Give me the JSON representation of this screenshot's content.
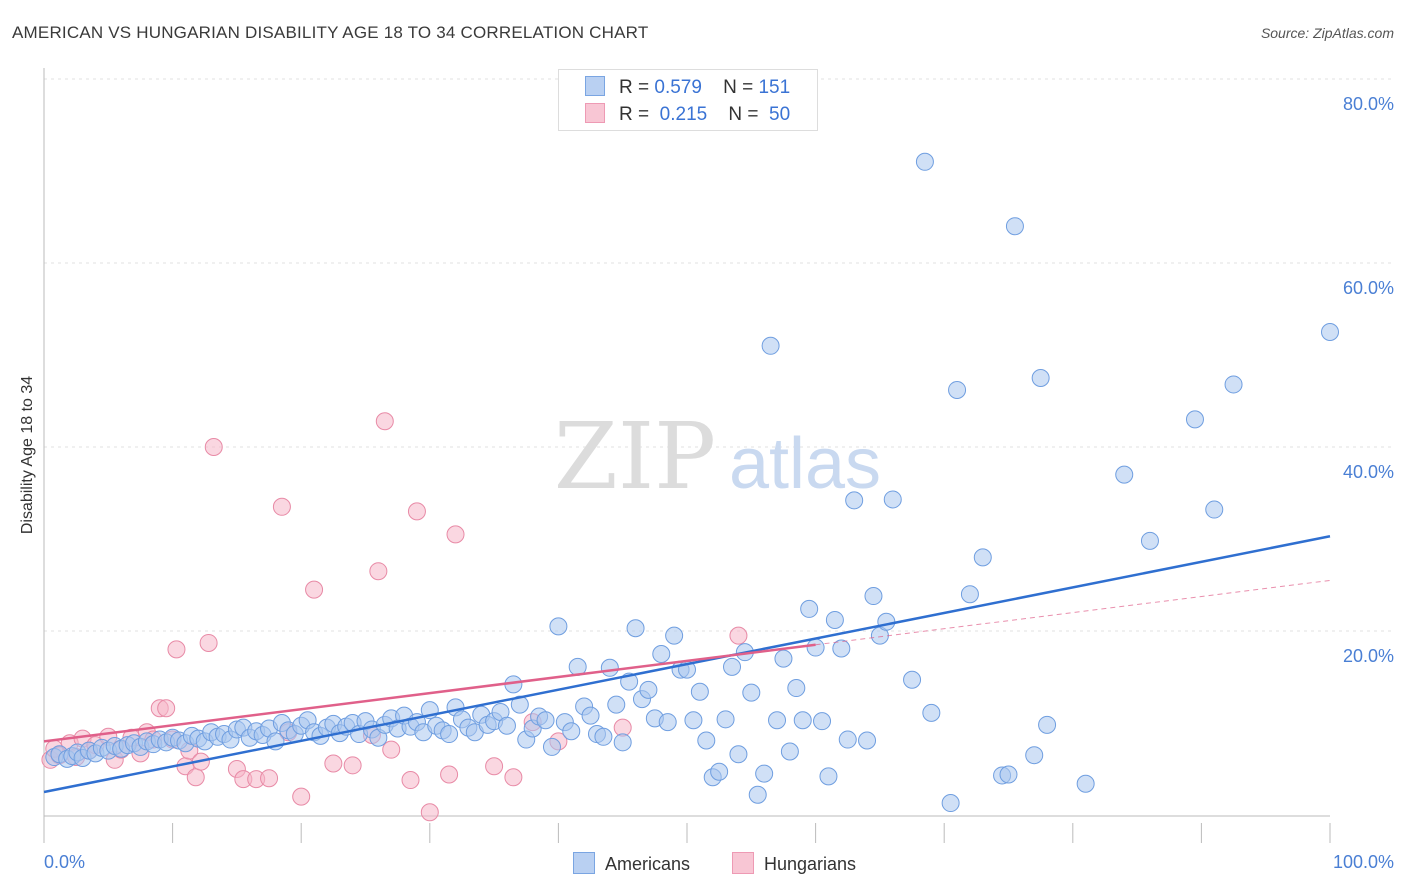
{
  "title": "AMERICAN VS HUNGARIAN DISABILITY AGE 18 TO 34 CORRELATION CHART",
  "source": "Source: ZipAtlas.com",
  "watermark": {
    "zip": "ZIP",
    "atlas": "atlas"
  },
  "legend": {
    "americans": {
      "r_label": "R =",
      "r": "0.579",
      "n_label": "N =",
      "n": "151"
    },
    "hungarians": {
      "r_label": "R =",
      "r": "0.215",
      "n_label": "N =",
      "n": "50"
    }
  },
  "bottom_legend": {
    "americans": "Americans",
    "hungarians": "Hungarians"
  },
  "colors": {
    "american_fill": "#a9c6ee",
    "american_stroke": "#6f9ee0",
    "american_line": "#2f6fd0",
    "hungarian_fill": "#f5b7c8",
    "hungarian_stroke": "#e88aa6",
    "hungarian_line": "#e0608a",
    "tick_text": "#4a7fd4",
    "grid": "#e2e2e2"
  },
  "chart_data": {
    "type": "scatter",
    "title": "AMERICAN VS HUNGARIAN DISABILITY AGE 18 TO 34 CORRELATION CHART",
    "xlabel": "",
    "ylabel": "Disability Age 18 to 34",
    "xlim": [
      0,
      100
    ],
    "ylim": [
      0,
      80
    ],
    "x_tick_labels": [
      "0.0%",
      "100.0%"
    ],
    "y_ticks": [
      20,
      40,
      60,
      80
    ],
    "y_tick_labels": [
      "20.0%",
      "40.0%",
      "60.0%",
      "80.0%"
    ],
    "grid": true,
    "series": [
      {
        "name": "Americans",
        "trend": {
          "x": [
            0,
            100
          ],
          "y": [
            2.5,
            30.3
          ]
        },
        "points": [
          [
            0.8,
            6.3
          ],
          [
            1.2,
            6.6
          ],
          [
            1.8,
            6.1
          ],
          [
            2.2,
            6.4
          ],
          [
            2.6,
            6.8
          ],
          [
            3.0,
            6.2
          ],
          [
            3.5,
            7.0
          ],
          [
            4.0,
            6.7
          ],
          [
            4.5,
            7.3
          ],
          [
            5.0,
            7.0
          ],
          [
            5.5,
            7.5
          ],
          [
            6.0,
            7.2
          ],
          [
            6.5,
            7.6
          ],
          [
            7.0,
            7.8
          ],
          [
            7.5,
            7.4
          ],
          [
            8.0,
            8.0
          ],
          [
            8.5,
            7.7
          ],
          [
            9.0,
            8.2
          ],
          [
            9.5,
            7.9
          ],
          [
            10.0,
            8.4
          ],
          [
            10.5,
            8.1
          ],
          [
            11.0,
            7.8
          ],
          [
            11.5,
            8.6
          ],
          [
            12.0,
            8.3
          ],
          [
            12.5,
            8.0
          ],
          [
            13.0,
            9.0
          ],
          [
            13.5,
            8.5
          ],
          [
            14.0,
            8.8
          ],
          [
            14.5,
            8.2
          ],
          [
            15.0,
            9.3
          ],
          [
            15.5,
            9.5
          ],
          [
            16.0,
            8.4
          ],
          [
            16.5,
            9.1
          ],
          [
            17.0,
            8.7
          ],
          [
            17.5,
            9.4
          ],
          [
            18.0,
            8.0
          ],
          [
            18.5,
            10.0
          ],
          [
            19.0,
            9.2
          ],
          [
            19.5,
            8.8
          ],
          [
            20.0,
            9.7
          ],
          [
            20.5,
            10.3
          ],
          [
            21.0,
            9.0
          ],
          [
            21.5,
            8.6
          ],
          [
            22.0,
            9.5
          ],
          [
            22.5,
            9.9
          ],
          [
            23.0,
            8.9
          ],
          [
            23.5,
            9.6
          ],
          [
            24.0,
            10.0
          ],
          [
            24.5,
            8.8
          ],
          [
            25.0,
            10.2
          ],
          [
            25.5,
            9.3
          ],
          [
            26.0,
            8.4
          ],
          [
            26.5,
            9.8
          ],
          [
            27.0,
            10.5
          ],
          [
            27.5,
            9.4
          ],
          [
            28.0,
            10.8
          ],
          [
            28.5,
            9.6
          ],
          [
            29.0,
            10.1
          ],
          [
            29.5,
            9.0
          ],
          [
            30.0,
            11.4
          ],
          [
            30.5,
            9.7
          ],
          [
            31.0,
            9.2
          ],
          [
            31.5,
            8.8
          ],
          [
            32.0,
            11.7
          ],
          [
            32.5,
            10.4
          ],
          [
            33.0,
            9.5
          ],
          [
            33.5,
            9.0
          ],
          [
            34.0,
            10.9
          ],
          [
            34.5,
            9.8
          ],
          [
            35.0,
            10.2
          ],
          [
            35.5,
            11.2
          ],
          [
            36.0,
            9.7
          ],
          [
            36.5,
            14.2
          ],
          [
            37.0,
            12.0
          ],
          [
            37.5,
            8.2
          ],
          [
            38.0,
            9.4
          ],
          [
            38.5,
            10.7
          ],
          [
            39.0,
            10.3
          ],
          [
            39.5,
            7.4
          ],
          [
            40.0,
            20.5
          ],
          [
            40.5,
            10.1
          ],
          [
            41.0,
            9.1
          ],
          [
            41.5,
            16.1
          ],
          [
            42.0,
            11.8
          ],
          [
            42.5,
            10.8
          ],
          [
            43.0,
            8.8
          ],
          [
            43.5,
            8.5
          ],
          [
            44.0,
            16.0
          ],
          [
            44.5,
            12.0
          ],
          [
            45.0,
            7.9
          ],
          [
            45.5,
            14.5
          ],
          [
            46.0,
            20.3
          ],
          [
            46.5,
            12.6
          ],
          [
            47.0,
            13.6
          ],
          [
            47.5,
            10.5
          ],
          [
            48.0,
            17.5
          ],
          [
            48.5,
            10.1
          ],
          [
            49.0,
            19.5
          ],
          [
            49.5,
            15.8
          ],
          [
            50.0,
            15.8
          ],
          [
            50.5,
            10.3
          ],
          [
            51.0,
            13.4
          ],
          [
            51.5,
            8.1
          ],
          [
            52.0,
            4.1
          ],
          [
            52.5,
            4.7
          ],
          [
            53.0,
            10.4
          ],
          [
            53.5,
            16.1
          ],
          [
            54.0,
            6.6
          ],
          [
            54.5,
            17.7
          ],
          [
            55.0,
            13.3
          ],
          [
            55.5,
            2.2
          ],
          [
            56.0,
            4.5
          ],
          [
            56.5,
            51.0
          ],
          [
            57.0,
            10.3
          ],
          [
            57.5,
            17.0
          ],
          [
            58.0,
            6.9
          ],
          [
            58.5,
            13.8
          ],
          [
            59.0,
            10.3
          ],
          [
            59.5,
            22.4
          ],
          [
            60.0,
            18.2
          ],
          [
            60.5,
            10.2
          ],
          [
            61.0,
            4.2
          ],
          [
            61.5,
            21.2
          ],
          [
            62.0,
            18.1
          ],
          [
            62.5,
            8.2
          ],
          [
            63.0,
            34.2
          ],
          [
            64.0,
            8.1
          ],
          [
            64.5,
            23.8
          ],
          [
            65.0,
            19.5
          ],
          [
            65.5,
            21.0
          ],
          [
            66.0,
            34.3
          ],
          [
            67.5,
            14.7
          ],
          [
            68.5,
            71.0
          ],
          [
            69.0,
            11.1
          ],
          [
            70.5,
            1.3
          ],
          [
            71.0,
            46.2
          ],
          [
            72.0,
            24.0
          ],
          [
            73.0,
            28.0
          ],
          [
            74.5,
            4.3
          ],
          [
            75.0,
            4.4
          ],
          [
            75.5,
            64.0
          ],
          [
            77.0,
            6.5
          ],
          [
            77.5,
            47.5
          ],
          [
            78.0,
            9.8
          ],
          [
            81.0,
            3.4
          ],
          [
            84.0,
            37.0
          ],
          [
            86.0,
            29.8
          ],
          [
            89.5,
            43.0
          ],
          [
            91.0,
            33.2
          ],
          [
            92.5,
            46.8
          ],
          [
            100.0,
            52.5
          ]
        ]
      },
      {
        "name": "Hungarians",
        "trend": {
          "x": [
            0,
            60
          ],
          "y": [
            8.0,
            18.5
          ]
        },
        "trend_extension": {
          "x": [
            60,
            100
          ],
          "y": [
            18.5,
            25.5
          ]
        },
        "points": [
          [
            0.5,
            6.0
          ],
          [
            0.8,
            7.2
          ],
          [
            1.2,
            6.5
          ],
          [
            2.0,
            7.8
          ],
          [
            2.5,
            6.3
          ],
          [
            3.0,
            8.3
          ],
          [
            3.5,
            7.0
          ],
          [
            4.0,
            7.6
          ],
          [
            5.0,
            8.5
          ],
          [
            5.5,
            6.0
          ],
          [
            6.0,
            7.1
          ],
          [
            6.8,
            8.4
          ],
          [
            7.5,
            6.7
          ],
          [
            8.0,
            9.0
          ],
          [
            8.5,
            8.2
          ],
          [
            9.0,
            11.6
          ],
          [
            9.5,
            11.6
          ],
          [
            10.0,
            8.2
          ],
          [
            10.3,
            18.0
          ],
          [
            11.0,
            5.3
          ],
          [
            11.3,
            7.0
          ],
          [
            11.8,
            4.1
          ],
          [
            12.2,
            5.8
          ],
          [
            12.8,
            18.7
          ],
          [
            13.2,
            40.0
          ],
          [
            15.0,
            5.0
          ],
          [
            15.5,
            3.9
          ],
          [
            16.5,
            3.9
          ],
          [
            17.5,
            4.0
          ],
          [
            18.5,
            33.5
          ],
          [
            19.0,
            9.0
          ],
          [
            20.0,
            2.0
          ],
          [
            21.0,
            24.5
          ],
          [
            22.5,
            5.6
          ],
          [
            24.0,
            5.4
          ],
          [
            25.5,
            8.7
          ],
          [
            26.0,
            26.5
          ],
          [
            26.5,
            42.8
          ],
          [
            27.0,
            7.1
          ],
          [
            28.5,
            3.8
          ],
          [
            29.0,
            33.0
          ],
          [
            30.0,
            0.3
          ],
          [
            31.5,
            4.4
          ],
          [
            32.0,
            30.5
          ],
          [
            35.0,
            5.3
          ],
          [
            36.5,
            4.1
          ],
          [
            38.0,
            10.1
          ],
          [
            40.0,
            8.0
          ],
          [
            45.0,
            9.5
          ],
          [
            54.0,
            19.5
          ]
        ]
      }
    ]
  }
}
